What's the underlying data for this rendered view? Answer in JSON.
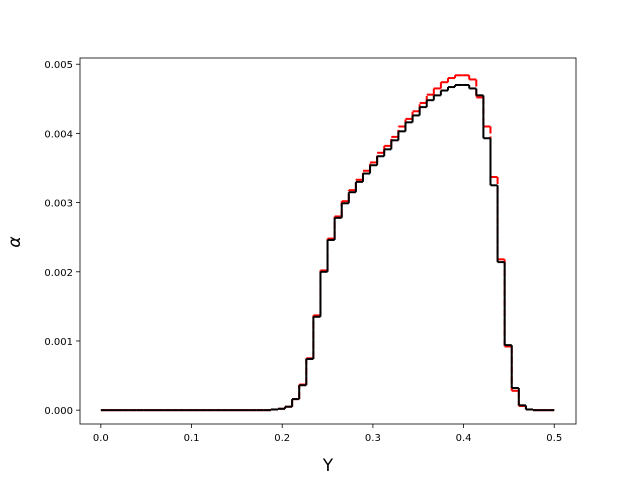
{
  "chart_data": {
    "type": "step",
    "xlabel": "Y",
    "ylabel": "α",
    "x": [
      0,
      0.0078125,
      0.015625,
      0.0234375,
      0.03125,
      0.0390625,
      0.046875,
      0.0546875,
      0.0625,
      0.0703125,
      0.078125,
      0.0859375,
      0.09375,
      0.1015625,
      0.109375,
      0.1171875,
      0.125,
      0.1328125,
      0.140625,
      0.1484375,
      0.15625,
      0.1640625,
      0.171875,
      0.1796875,
      0.1875,
      0.1953125,
      0.203125,
      0.2109375,
      0.21875,
      0.2265625,
      0.234375,
      0.2421875,
      0.25,
      0.2578125,
      0.265625,
      0.2734375,
      0.28125,
      0.2890625,
      0.296875,
      0.3046875,
      0.3125,
      0.3203125,
      0.328125,
      0.3359375,
      0.34375,
      0.3515625,
      0.359375,
      0.3671875,
      0.375,
      0.3828125,
      0.390625,
      0.3984375,
      0.40625,
      0.4140625,
      0.421875,
      0.4296875,
      0.4375,
      0.4453125,
      0.453125,
      0.4609375,
      0.46875,
      0.4765625,
      0.484375,
      0.4921875,
      0.5
    ],
    "series": [
      {
        "color": "#ff0000",
        "dashed": true,
        "values": [
          0,
          0,
          0,
          0,
          0,
          0,
          0,
          0,
          0,
          0,
          0,
          0,
          0,
          0,
          0,
          0,
          0,
          0,
          0,
          0,
          0,
          0,
          0,
          0,
          1e-05,
          2e-05,
          5e-05,
          0.00016,
          0.00037,
          0.00075,
          0.00137,
          0.00202,
          0.00248,
          0.0028,
          0.00302,
          0.00318,
          0.00333,
          0.00346,
          0.00358,
          0.00372,
          0.00382,
          0.00395,
          0.0041,
          0.00421,
          0.00432,
          0.00444,
          0.00456,
          0.00465,
          0.00474,
          0.0048,
          0.00484,
          0.00484,
          0.00478,
          0.00452,
          0.0041,
          0.00337,
          0.00218,
          0.00092,
          0.00028,
          6e-05,
          1e-05,
          0,
          0,
          0,
          0
        ]
      },
      {
        "color": "#000000",
        "dashed": false,
        "values": [
          0,
          0,
          0,
          0,
          0,
          0,
          0,
          0,
          0,
          0,
          0,
          0,
          0,
          0,
          0,
          0,
          0,
          0,
          0,
          0,
          0,
          0,
          0,
          0,
          1e-05,
          2e-05,
          5e-05,
          0.00016,
          0.00036,
          0.00074,
          0.00135,
          0.002,
          0.00246,
          0.00278,
          0.00299,
          0.00315,
          0.0033,
          0.00342,
          0.00354,
          0.00367,
          0.00377,
          0.0039,
          0.00403,
          0.00416,
          0.00426,
          0.00438,
          0.00448,
          0.00455,
          0.00462,
          0.00467,
          0.0047,
          0.0047,
          0.00465,
          0.00455,
          0.00393,
          0.00325,
          0.00214,
          0.00094,
          0.00032,
          7e-05,
          1e-05,
          0,
          0,
          0,
          0
        ]
      }
    ],
    "xlim": [
      -0.023,
      0.524
    ],
    "ylim": [
      -0.0002,
      0.00509
    ],
    "xticks": [
      {
        "value": 0,
        "label": "0.0"
      },
      0.1,
      0.2,
      0.3,
      0.4,
      0.5
    ],
    "yticks": [
      {
        "value": 0,
        "label": "0.000"
      },
      {
        "value": 0.001,
        "label": "0.001"
      },
      {
        "value": 0.002,
        "label": "0.002"
      },
      {
        "value": 0.003,
        "label": "0.003"
      },
      {
        "value": 0.004,
        "label": "0.004"
      },
      {
        "value": 0.005,
        "label": "0.005"
      }
    ]
  }
}
